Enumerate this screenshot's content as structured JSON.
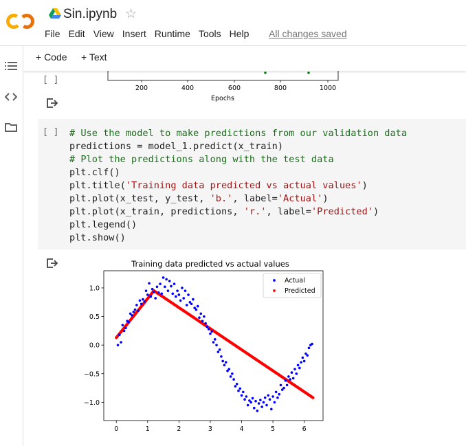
{
  "notebook": {
    "title": "Sin.ipynb",
    "save_status": "All changes saved",
    "menu": [
      "File",
      "Edit",
      "View",
      "Insert",
      "Runtime",
      "Tools",
      "Help"
    ]
  },
  "toolbar": {
    "code_label": "+ Code",
    "text_label": "+ Text"
  },
  "icons": {
    "logo": "colab-logo",
    "drive": "google-drive-icon",
    "star": "star-outline-icon",
    "sidebar": [
      "table-of-contents-icon",
      "code-snippets-icon",
      "files-icon"
    ],
    "output": "output-arrow-icon"
  },
  "colors": {
    "logo_orange": "#F9AB00",
    "logo_dark": "#E8710A",
    "blue": "#0000ff",
    "red": "#ff0000",
    "green": "#008000"
  },
  "prev_cell": {
    "bracket": "[ ]",
    "xlabel": "Epochs",
    "xticks": [
      "200",
      "400",
      "600",
      "800",
      "1000"
    ]
  },
  "code_cell": {
    "bracket": "[ ]",
    "lines": [
      [
        {
          "t": "# Use the model to make predictions from our validation data",
          "c": "cm"
        }
      ],
      [
        {
          "t": "predictions = model_1.predict(x_train)",
          "c": ""
        }
      ],
      [
        {
          "t": "# Plot the predictions along with the test data",
          "c": "cm"
        }
      ],
      [
        {
          "t": "plt.clf()",
          "c": ""
        }
      ],
      [
        {
          "t": "plt.title(",
          "c": ""
        },
        {
          "t": "'Training data predicted vs actual values'",
          "c": "st"
        },
        {
          "t": ")",
          "c": ""
        }
      ],
      [
        {
          "t": "plt.plot(x_test, y_test, ",
          "c": ""
        },
        {
          "t": "'b.'",
          "c": "st"
        },
        {
          "t": ", label=",
          "c": ""
        },
        {
          "t": "'Actual'",
          "c": "st"
        },
        {
          "t": ")",
          "c": ""
        }
      ],
      [
        {
          "t": "plt.plot(x_train, predictions, ",
          "c": ""
        },
        {
          "t": "'r.'",
          "c": "st"
        },
        {
          "t": ", label=",
          "c": ""
        },
        {
          "t": "'Predicted'",
          "c": "st"
        },
        {
          "t": ")",
          "c": ""
        }
      ],
      [
        {
          "t": "plt.legend()",
          "c": ""
        }
      ],
      [
        {
          "t": "plt.show()",
          "c": ""
        }
      ]
    ]
  },
  "chart_data": {
    "type": "scatter",
    "title": "Training data predicted vs actual values",
    "xlim": [
      -0.4,
      6.6
    ],
    "ylim": [
      -1.32,
      1.3
    ],
    "xticks": [
      "0",
      "1",
      "2",
      "3",
      "4",
      "5",
      "6"
    ],
    "yticks": [
      "1.0",
      "0.5",
      "0.0",
      "−0.5",
      "−1.0"
    ],
    "legend_position": "top-right",
    "series": [
      {
        "name": "Actual",
        "color": "#0000ff",
        "x": [
          0.05,
          0.1,
          0.15,
          0.2,
          0.25,
          0.3,
          0.35,
          0.4,
          0.45,
          0.5,
          0.55,
          0.6,
          0.65,
          0.7,
          0.75,
          0.8,
          0.85,
          0.9,
          0.95,
          1.0,
          1.05,
          1.1,
          1.15,
          1.2,
          1.25,
          1.3,
          1.35,
          1.4,
          1.45,
          1.5,
          1.55,
          1.6,
          1.65,
          1.7,
          1.75,
          1.8,
          1.85,
          1.9,
          1.95,
          2.0,
          2.05,
          2.1,
          2.15,
          2.2,
          2.25,
          2.3,
          2.35,
          2.4,
          2.45,
          2.5,
          2.55,
          2.6,
          2.65,
          2.7,
          2.75,
          2.8,
          2.85,
          2.9,
          2.95,
          3.0,
          3.05,
          3.1,
          3.15,
          3.2,
          3.25,
          3.3,
          3.35,
          3.4,
          3.45,
          3.5,
          3.55,
          3.6,
          3.65,
          3.7,
          3.75,
          3.8,
          3.85,
          3.9,
          3.95,
          4.0,
          4.05,
          4.1,
          4.15,
          4.2,
          4.25,
          4.3,
          4.35,
          4.4,
          4.45,
          4.5,
          4.55,
          4.6,
          4.65,
          4.7,
          4.75,
          4.8,
          4.85,
          4.9,
          4.95,
          5.0,
          5.05,
          5.1,
          5.15,
          5.2,
          5.25,
          5.3,
          5.35,
          5.4,
          5.45,
          5.5,
          5.55,
          5.6,
          5.65,
          5.7,
          5.75,
          5.8,
          5.85,
          5.9,
          5.95,
          6.0,
          6.05,
          6.1,
          6.15,
          6.2,
          6.25
        ],
        "y": [
          0.0,
          0.18,
          0.05,
          0.35,
          0.25,
          0.3,
          0.42,
          0.4,
          0.55,
          0.52,
          0.58,
          0.62,
          0.7,
          0.6,
          0.78,
          0.72,
          0.8,
          0.76,
          0.95,
          0.88,
          1.08,
          0.85,
          0.98,
          0.93,
          0.82,
          1.02,
          0.92,
          1.07,
          0.9,
          1.18,
          1.02,
          1.15,
          0.95,
          1.12,
          1.03,
          0.9,
          1.07,
          0.85,
          0.95,
          0.88,
          0.78,
          1.0,
          0.82,
          0.95,
          0.7,
          0.88,
          0.75,
          0.72,
          0.8,
          0.65,
          0.62,
          0.68,
          0.48,
          0.55,
          0.42,
          0.5,
          0.38,
          0.32,
          0.28,
          0.2,
          0.24,
          0.05,
          0.1,
          0.0,
          -0.12,
          -0.08,
          -0.2,
          -0.28,
          -0.35,
          -0.3,
          -0.45,
          -0.42,
          -0.55,
          -0.5,
          -0.6,
          -0.72,
          -0.68,
          -0.8,
          -0.76,
          -0.88,
          -0.82,
          -0.95,
          -0.9,
          -1.05,
          -0.97,
          -1.0,
          -0.93,
          -1.1,
          -0.98,
          -1.15,
          -1.02,
          -0.96,
          -1.08,
          -1.0,
          -0.92,
          -1.05,
          -0.88,
          -0.95,
          -1.12,
          -0.9,
          -1.0,
          -0.82,
          -0.92,
          -0.86,
          -0.7,
          -0.78,
          -0.75,
          -0.62,
          -0.7,
          -0.55,
          -0.6,
          -0.48,
          -0.58,
          -0.42,
          -0.5,
          -0.35,
          -0.4,
          -0.3,
          -0.22,
          -0.28,
          -0.15,
          -0.18,
          -0.05,
          0.0,
          0.02
        ]
      },
      {
        "name": "Predicted",
        "color": "#ff0000",
        "x": [
          0.0,
          1.2,
          6.28
        ],
        "y": [
          0.13,
          0.95,
          -0.92
        ],
        "note_shape": "dense red dots tracing line"
      }
    ]
  }
}
